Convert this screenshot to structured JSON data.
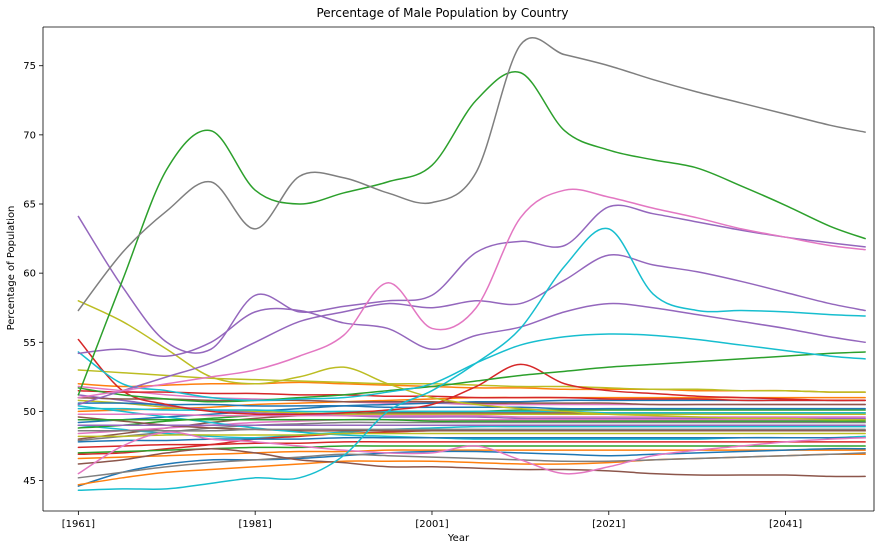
{
  "chart_data": {
    "type": "line",
    "title": "Percentage of Male Population by Country",
    "xlabel": "Year",
    "ylabel": "Percentage of Population",
    "xlim": [
      1957,
      2051
    ],
    "ylim": [
      42.8,
      77.8
    ],
    "x_ticks": [
      {
        "value": 1961,
        "label": "[1961]"
      },
      {
        "value": 1981,
        "label": "[1981]"
      },
      {
        "value": 2001,
        "label": "[2001]"
      },
      {
        "value": 2021,
        "label": "[2021]"
      },
      {
        "value": 2041,
        "label": "[2041]"
      }
    ],
    "y_ticks": [
      {
        "value": 45,
        "label": "45"
      },
      {
        "value": 50,
        "label": "50"
      },
      {
        "value": 55,
        "label": "55"
      },
      {
        "value": 60,
        "label": "60"
      },
      {
        "value": 65,
        "label": "65"
      },
      {
        "value": 70,
        "label": "70"
      },
      {
        "value": 75,
        "label": "75"
      }
    ],
    "grid": false,
    "legend": "none",
    "colors": [
      "#1f77b4",
      "#ff7f0e",
      "#2ca02c",
      "#d62728",
      "#9467bd",
      "#8c564b",
      "#e377c2",
      "#7f7f7f",
      "#bcbd22",
      "#17becf"
    ],
    "x": [
      1961,
      1966,
      1971,
      1976,
      1981,
      1986,
      1991,
      1996,
      2001,
      2006,
      2011,
      2016,
      2021,
      2026,
      2031,
      2036,
      2041,
      2046,
      2050
    ],
    "series": [
      {
        "color": "#7f7f7f",
        "values": [
          57.3,
          61.5,
          64.5,
          66.6,
          63.2,
          67.0,
          66.9,
          65.8,
          65.1,
          67.3,
          76.5,
          75.8,
          75.0,
          74.0,
          73.1,
          72.3,
          71.5,
          70.7,
          70.2
        ]
      },
      {
        "color": "#2ca02c",
        "values": [
          51.2,
          59.5,
          67.5,
          70.3,
          66.0,
          65.0,
          65.8,
          66.6,
          67.8,
          72.5,
          74.5,
          70.3,
          68.9,
          68.2,
          67.6,
          66.3,
          64.9,
          63.4,
          62.5
        ]
      },
      {
        "color": "#e377c2",
        "values": [
          51.0,
          51.5,
          52.0,
          52.5,
          53.0,
          54.0,
          55.5,
          59.3,
          56.0,
          57.5,
          64.0,
          66.0,
          65.5,
          64.7,
          64.0,
          63.2,
          62.6,
          62.0,
          61.7
        ]
      },
      {
        "color": "#9467bd",
        "values": [
          64.1,
          59.0,
          55.0,
          54.5,
          58.4,
          57.2,
          57.6,
          58.0,
          58.4,
          61.5,
          62.3,
          62.0,
          64.8,
          64.3,
          63.7,
          63.1,
          62.6,
          62.2,
          61.9
        ]
      },
      {
        "color": "#17becf",
        "values": [
          44.3,
          44.4,
          44.4,
          44.8,
          45.2,
          45.2,
          46.8,
          50.0,
          51.5,
          53.5,
          56.0,
          60.5,
          63.2,
          58.5,
          57.3,
          57.3,
          57.2,
          57.0,
          56.9
        ]
      },
      {
        "color": "#9467bd",
        "values": [
          50.5,
          51.5,
          52.5,
          53.5,
          55.0,
          56.5,
          57.2,
          57.8,
          57.5,
          58.0,
          57.8,
          59.5,
          61.3,
          60.6,
          60.1,
          59.4,
          58.6,
          57.8,
          57.3
        ]
      },
      {
        "color": "#9467bd",
        "values": [
          54.2,
          54.5,
          54.0,
          55.0,
          57.2,
          57.3,
          56.4,
          56.0,
          54.5,
          55.5,
          56.1,
          57.2,
          57.8,
          57.5,
          57.0,
          56.5,
          56.0,
          55.4,
          55.0
        ]
      },
      {
        "color": "#17becf",
        "values": [
          54.3,
          52.0,
          51.5,
          51.0,
          50.8,
          50.9,
          51.0,
          51.4,
          52.0,
          53.5,
          54.8,
          55.4,
          55.6,
          55.5,
          55.2,
          54.8,
          54.4,
          54.0,
          53.8
        ]
      },
      {
        "color": "#2ca02c",
        "values": [
          51.7,
          51.2,
          50.9,
          50.7,
          50.8,
          51.0,
          51.2,
          51.5,
          51.8,
          52.2,
          52.6,
          52.9,
          53.2,
          53.4,
          53.6,
          53.8,
          54.0,
          54.2,
          54.3
        ]
      },
      {
        "color": "#bcbd22",
        "values": [
          58.0,
          56.5,
          54.5,
          52.5,
          52.0,
          52.5,
          53.2,
          52.0,
          51.0,
          50.5,
          50.2,
          50.0,
          49.8,
          49.7,
          49.6,
          49.5,
          49.5,
          49.4,
          49.4
        ]
      },
      {
        "color": "#d62728",
        "values": [
          55.2,
          51.5,
          50.5,
          50.0,
          49.8,
          49.8,
          49.9,
          50.1,
          50.5,
          51.8,
          53.4,
          52.0,
          51.5,
          51.3,
          51.1,
          51.0,
          50.9,
          50.8,
          50.8
        ]
      },
      {
        "color": "#e377c2",
        "values": [
          45.5,
          47.5,
          48.5,
          48.0,
          47.8,
          47.5,
          47.2,
          47.0,
          47.0,
          47.5,
          46.5,
          45.5,
          46.0,
          46.8,
          47.2,
          47.5,
          47.8,
          48.0,
          48.1
        ]
      },
      {
        "color": "#8c564b",
        "values": [
          46.2,
          46.5,
          47.0,
          47.3,
          47.0,
          46.5,
          46.3,
          46.0,
          46.0,
          45.9,
          45.8,
          45.8,
          45.7,
          45.5,
          45.4,
          45.4,
          45.4,
          45.3,
          45.3
        ]
      },
      {
        "color": "#7f7f7f",
        "values": [
          45.2,
          45.6,
          46.0,
          46.3,
          46.5,
          46.7,
          46.9,
          46.8,
          46.7,
          46.6,
          46.5,
          46.4,
          46.4,
          46.5,
          46.6,
          46.7,
          46.8,
          46.9,
          47.0
        ]
      },
      {
        "color": "#ff7f0e",
        "values": [
          44.7,
          45.2,
          45.6,
          45.8,
          46.0,
          46.2,
          46.4,
          46.4,
          46.4,
          46.3,
          46.2,
          46.2,
          46.3,
          46.5,
          46.6,
          46.7,
          46.8,
          46.9,
          46.9
        ]
      },
      {
        "color": "#1f77b4",
        "values": [
          44.6,
          45.6,
          46.2,
          46.5,
          46.5,
          46.6,
          46.8,
          47.0,
          47.1,
          47.1,
          47.0,
          46.9,
          46.8,
          46.9,
          47.0,
          47.1,
          47.2,
          47.3,
          47.3
        ]
      },
      {
        "color": "#bcbd22",
        "values": [
          53.0,
          52.8,
          52.6,
          52.4,
          52.3,
          52.2,
          52.1,
          52.0,
          52.0,
          51.9,
          51.8,
          51.8,
          51.7,
          51.6,
          51.6,
          51.5,
          51.5,
          51.4,
          51.4
        ]
      },
      {
        "color": "#ff7f0e",
        "values": [
          52.0,
          51.8,
          51.9,
          52.0,
          52.0,
          52.1,
          52.0,
          51.9,
          51.8,
          51.7,
          51.7,
          51.6,
          51.6,
          51.6,
          51.5,
          51.5,
          51.5,
          51.4,
          51.4
        ]
      },
      {
        "color": "#d62728",
        "values": [
          51.5,
          51.4,
          51.4,
          51.3,
          51.3,
          51.2,
          51.2,
          51.1,
          51.1,
          51.0,
          51.0,
          51.0,
          50.9,
          50.9,
          50.9,
          50.8,
          50.8,
          50.8,
          50.8
        ]
      },
      {
        "color": "#8c564b",
        "values": [
          51.0,
          50.9,
          50.9,
          50.8,
          50.8,
          50.8,
          50.7,
          50.7,
          50.7,
          50.6,
          50.6,
          50.6,
          50.6,
          50.5,
          50.5,
          50.5,
          50.5,
          50.5,
          50.5
        ]
      },
      {
        "color": "#1f77b4",
        "values": [
          50.6,
          50.6,
          50.5,
          50.5,
          50.4,
          50.4,
          50.4,
          50.3,
          50.3,
          50.3,
          50.3,
          50.2,
          50.2,
          50.2,
          50.2,
          50.2,
          50.2,
          50.2,
          50.2
        ]
      },
      {
        "color": "#17becf",
        "values": [
          50.2,
          50.2,
          50.1,
          50.1,
          50.1,
          50.0,
          50.0,
          50.0,
          50.0,
          50.0,
          50.0,
          50.0,
          49.9,
          49.9,
          49.9,
          49.9,
          49.9,
          49.9,
          49.9
        ]
      },
      {
        "color": "#e377c2",
        "values": [
          49.8,
          49.8,
          49.8,
          49.7,
          49.7,
          49.7,
          49.7,
          49.7,
          49.7,
          49.7,
          49.6,
          49.6,
          49.6,
          49.6,
          49.6,
          49.6,
          49.6,
          49.6,
          49.6
        ]
      },
      {
        "color": "#2ca02c",
        "values": [
          49.4,
          49.4,
          49.4,
          49.4,
          49.4,
          49.4,
          49.4,
          49.4,
          49.3,
          49.3,
          49.3,
          49.3,
          49.3,
          49.3,
          49.3,
          49.3,
          49.3,
          49.3,
          49.3
        ]
      },
      {
        "color": "#9467bd",
        "values": [
          49.0,
          49.0,
          49.0,
          49.0,
          49.0,
          49.0,
          49.0,
          49.0,
          49.0,
          49.0,
          49.0,
          49.0,
          49.0,
          49.0,
          49.0,
          49.0,
          49.0,
          49.0,
          49.0
        ]
      },
      {
        "color": "#7f7f7f",
        "values": [
          48.6,
          48.6,
          48.6,
          48.6,
          48.7,
          48.7,
          48.7,
          48.7,
          48.7,
          48.7,
          48.7,
          48.7,
          48.7,
          48.7,
          48.7,
          48.7,
          48.7,
          48.7,
          48.7
        ]
      },
      {
        "color": "#bcbd22",
        "values": [
          48.2,
          48.2,
          48.3,
          48.3,
          48.3,
          48.3,
          48.4,
          48.4,
          48.4,
          48.4,
          48.4,
          48.4,
          48.4,
          48.4,
          48.4,
          48.4,
          48.4,
          48.4,
          48.4
        ]
      },
      {
        "color": "#1f77b4",
        "values": [
          47.8,
          47.9,
          47.9,
          48.0,
          48.0,
          48.0,
          48.1,
          48.1,
          48.1,
          48.1,
          48.1,
          48.1,
          48.1,
          48.1,
          48.1,
          48.1,
          48.1,
          48.1,
          48.1
        ]
      },
      {
        "color": "#d62728",
        "values": [
          47.4,
          47.5,
          47.6,
          47.6,
          47.7,
          47.7,
          47.8,
          47.8,
          47.8,
          47.8,
          47.8,
          47.8,
          47.8,
          47.8,
          47.8,
          47.8,
          47.8,
          47.8,
          47.8
        ]
      },
      {
        "color": "#2ca02c",
        "values": [
          47.0,
          47.1,
          47.2,
          47.3,
          47.4,
          47.4,
          47.5,
          47.5,
          47.5,
          47.5,
          47.5,
          47.5,
          47.5,
          47.5,
          47.5,
          47.5,
          47.5,
          47.5,
          47.5
        ]
      },
      {
        "color": "#ff7f0e",
        "values": [
          46.6,
          46.7,
          46.8,
          46.9,
          47.0,
          47.1,
          47.1,
          47.2,
          47.2,
          47.2,
          47.2,
          47.2,
          47.2,
          47.2,
          47.2,
          47.2,
          47.2,
          47.2,
          47.2
        ]
      },
      {
        "color": "#17becf",
        "values": [
          50.4,
          50.0,
          49.6,
          49.2,
          48.8,
          48.5,
          48.3,
          48.2,
          48.1,
          48.0,
          48.0,
          48.0,
          48.0,
          48.0,
          48.0,
          48.1,
          48.1,
          48.1,
          48.2
        ]
      },
      {
        "color": "#8c564b",
        "values": [
          49.6,
          49.3,
          49.0,
          48.8,
          48.7,
          48.6,
          48.6,
          48.6,
          48.6,
          48.6,
          48.6,
          48.6,
          48.6,
          48.6,
          48.6,
          48.6,
          48.6,
          48.6,
          48.6
        ]
      },
      {
        "color": "#e377c2",
        "values": [
          48.4,
          48.6,
          48.8,
          49.0,
          49.2,
          49.3,
          49.4,
          49.4,
          49.4,
          49.4,
          49.4,
          49.4,
          49.4,
          49.4,
          49.4,
          49.4,
          49.4,
          49.4,
          49.4
        ]
      },
      {
        "color": "#9467bd",
        "values": [
          51.2,
          50.8,
          50.4,
          50.1,
          49.9,
          49.8,
          49.7,
          49.6,
          49.6,
          49.6,
          49.5,
          49.5,
          49.5,
          49.5,
          49.5,
          49.5,
          49.5,
          49.5,
          49.5
        ]
      },
      {
        "color": "#2ca02c",
        "values": [
          48.8,
          49.0,
          49.3,
          49.5,
          49.7,
          49.8,
          49.9,
          50.0,
          50.0,
          50.0,
          50.1,
          50.1,
          50.1,
          50.1,
          50.1,
          50.1,
          50.1,
          50.1,
          50.1
        ]
      },
      {
        "color": "#bcbd22",
        "values": [
          50.8,
          50.6,
          50.3,
          50.1,
          50.0,
          49.9,
          49.8,
          49.8,
          49.8,
          49.8,
          49.8,
          49.8,
          49.8,
          49.8,
          49.8,
          49.8,
          49.8,
          49.8,
          49.8
        ]
      },
      {
        "color": "#1f77b4",
        "values": [
          49.2,
          49.4,
          49.6,
          49.8,
          50.0,
          50.2,
          50.4,
          50.5,
          50.6,
          50.7,
          50.7,
          50.8,
          50.8,
          50.8,
          50.8,
          50.8,
          50.8,
          50.8,
          50.8
        ]
      },
      {
        "color": "#d62728",
        "values": [
          46.9,
          47.0,
          47.3,
          47.6,
          48.0,
          48.2,
          48.4,
          48.5,
          48.6,
          48.6,
          48.6,
          48.6,
          48.6,
          48.6,
          48.6,
          48.6,
          48.6,
          48.6,
          48.6
        ]
      },
      {
        "color": "#ff7f0e",
        "values": [
          50.0,
          50.1,
          50.2,
          50.3,
          50.5,
          50.6,
          50.7,
          50.8,
          50.9,
          51.0,
          51.0,
          51.0,
          51.0,
          51.0,
          51.0,
          51.0,
          51.0,
          51.0,
          51.0
        ]
      },
      {
        "color": "#7f7f7f",
        "values": [
          47.9,
          48.2,
          48.5,
          48.8,
          49.0,
          49.1,
          49.2,
          49.2,
          49.2,
          49.2,
          49.2,
          49.2,
          49.2,
          49.2,
          49.2,
          49.2,
          49.2,
          49.2,
          49.2
        ]
      },
      {
        "color": "#17becf",
        "values": [
          49.0,
          48.7,
          48.4,
          48.2,
          48.1,
          48.3,
          48.5,
          48.7,
          48.8,
          48.9,
          48.9,
          48.9,
          48.9,
          48.9,
          48.9,
          48.9,
          48.9,
          48.9,
          48.9
        ]
      },
      {
        "color": "#e377c2",
        "values": [
          51.8,
          51.5,
          51.2,
          51.0,
          50.9,
          50.8,
          50.7,
          50.6,
          50.6,
          50.5,
          50.5,
          50.5,
          50.5,
          50.5,
          50.5,
          50.5,
          50.5,
          50.5,
          50.5
        ]
      },
      {
        "color": "#8c564b",
        "values": [
          48.0,
          48.4,
          48.8,
          49.2,
          49.5,
          49.7,
          49.8,
          49.9,
          49.9,
          49.9,
          49.9,
          49.9,
          49.9,
          49.9,
          49.9,
          49.9,
          49.9,
          49.9,
          49.9
        ]
      }
    ]
  }
}
